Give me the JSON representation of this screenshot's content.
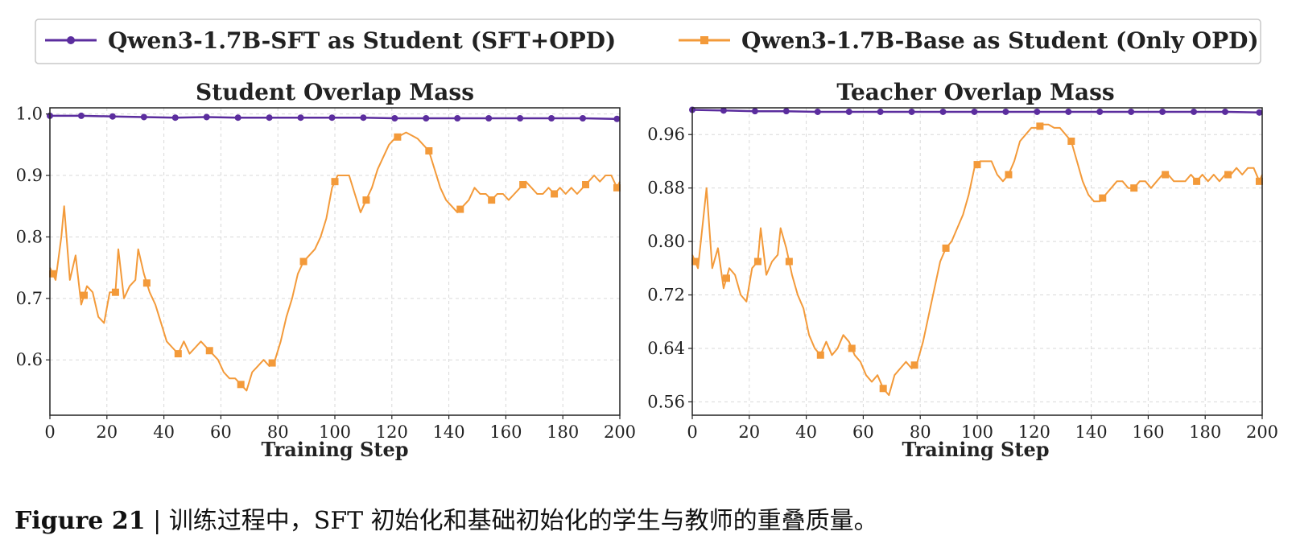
{
  "chart_data": [
    {
      "type": "line",
      "title": "Student Overlap Mass",
      "xlabel": "Training Step",
      "ylabel": "",
      "xlim": [
        0,
        200
      ],
      "ylim": [
        0.51,
        1.01
      ],
      "xticks": [
        0,
        20,
        40,
        60,
        80,
        100,
        120,
        140,
        160,
        180,
        200
      ],
      "xtick_labels": [
        "0",
        "20",
        "40",
        "60",
        "80",
        "100",
        "120",
        "140",
        "160",
        "180",
        "200"
      ],
      "yticks": [
        0.6,
        0.7,
        0.8,
        0.9,
        1.0
      ],
      "ytick_labels": [
        "0.6",
        "0.7",
        "0.8",
        "0.9",
        "1.0"
      ],
      "grid": true,
      "series": [
        {
          "name": "Qwen3-1.7B-SFT as Student (SFT+OPD)",
          "color": "#5b2d9e",
          "marker": "circle",
          "x": [
            0,
            11,
            22,
            33,
            44,
            55,
            66,
            77,
            88,
            99,
            110,
            121,
            132,
            143,
            154,
            165,
            176,
            187,
            199
          ],
          "y": [
            0.997,
            0.997,
            0.996,
            0.995,
            0.994,
            0.995,
            0.994,
            0.994,
            0.994,
            0.994,
            0.994,
            0.993,
            0.993,
            0.993,
            0.993,
            0.993,
            0.993,
            0.993,
            0.992
          ]
        },
        {
          "name": "Qwen3-1.7B-Base as Student (Only OPD)",
          "color": "#f39a3a",
          "marker": "square",
          "x": [
            0,
            2,
            4,
            5,
            7,
            9,
            11,
            13,
            15,
            17,
            19,
            21,
            23,
            24,
            26,
            28,
            30,
            31,
            33,
            35,
            37,
            39,
            41,
            43,
            45,
            47,
            49,
            51,
            53,
            55,
            57,
            59,
            61,
            63,
            65,
            67,
            69,
            71,
            73,
            75,
            77,
            79,
            81,
            83,
            85,
            87,
            89,
            91,
            93,
            95,
            97,
            99,
            101,
            103,
            105,
            107,
            109,
            111,
            113,
            115,
            117,
            119,
            121,
            123,
            125,
            127,
            129,
            131,
            133,
            135,
            137,
            139,
            141,
            143,
            145,
            147,
            149,
            151,
            153,
            155,
            157,
            159,
            161,
            163,
            165,
            167,
            169,
            171,
            173,
            175,
            177,
            179,
            181,
            183,
            185,
            187,
            189,
            191,
            193,
            195,
            197,
            199,
            200
          ],
          "y": [
            0.75,
            0.73,
            0.8,
            0.85,
            0.73,
            0.77,
            0.69,
            0.72,
            0.71,
            0.67,
            0.66,
            0.71,
            0.71,
            0.78,
            0.7,
            0.72,
            0.73,
            0.78,
            0.74,
            0.71,
            0.69,
            0.66,
            0.63,
            0.62,
            0.61,
            0.63,
            0.61,
            0.62,
            0.63,
            0.62,
            0.61,
            0.6,
            0.58,
            0.57,
            0.57,
            0.56,
            0.55,
            0.58,
            0.59,
            0.6,
            0.59,
            0.6,
            0.63,
            0.67,
            0.7,
            0.74,
            0.76,
            0.77,
            0.78,
            0.8,
            0.83,
            0.88,
            0.9,
            0.9,
            0.9,
            0.87,
            0.84,
            0.86,
            0.88,
            0.91,
            0.93,
            0.95,
            0.96,
            0.965,
            0.97,
            0.965,
            0.96,
            0.95,
            0.94,
            0.91,
            0.88,
            0.86,
            0.85,
            0.84,
            0.85,
            0.86,
            0.88,
            0.87,
            0.87,
            0.86,
            0.87,
            0.87,
            0.86,
            0.87,
            0.88,
            0.89,
            0.88,
            0.87,
            0.87,
            0.88,
            0.87,
            0.88,
            0.87,
            0.88,
            0.87,
            0.88,
            0.89,
            0.9,
            0.89,
            0.9,
            0.9,
            0.88,
            0.89
          ]
        }
      ]
    },
    {
      "type": "line",
      "title": "Teacher Overlap Mass",
      "xlabel": "Training Step",
      "ylabel": "",
      "xlim": [
        0,
        200
      ],
      "ylim": [
        0.54,
        1.0
      ],
      "xticks": [
        0,
        20,
        40,
        60,
        80,
        100,
        120,
        140,
        160,
        180,
        200
      ],
      "xtick_labels": [
        "0",
        "20",
        "40",
        "60",
        "80",
        "100",
        "120",
        "140",
        "160",
        "180",
        "200"
      ],
      "yticks": [
        0.56,
        0.64,
        0.72,
        0.8,
        0.88,
        0.96
      ],
      "ytick_labels": [
        "0.56",
        "0.64",
        "0.72",
        "0.80",
        "0.88",
        "0.96"
      ],
      "grid": true,
      "series": [
        {
          "name": "Qwen3-1.7B-SFT as Student (SFT+OPD)",
          "color": "#5b2d9e",
          "marker": "circle",
          "x": [
            0,
            11,
            22,
            33,
            44,
            55,
            66,
            77,
            88,
            99,
            110,
            121,
            132,
            143,
            154,
            165,
            176,
            187,
            199
          ],
          "y": [
            0.997,
            0.996,
            0.995,
            0.995,
            0.994,
            0.994,
            0.994,
            0.994,
            0.994,
            0.994,
            0.994,
            0.994,
            0.994,
            0.994,
            0.994,
            0.994,
            0.994,
            0.994,
            0.993
          ]
        },
        {
          "name": "Qwen3-1.7B-Base as Student (Only OPD)",
          "color": "#f39a3a",
          "marker": "square",
          "x": [
            0,
            2,
            4,
            5,
            7,
            9,
            11,
            13,
            15,
            17,
            19,
            21,
            23,
            24,
            26,
            28,
            30,
            31,
            33,
            35,
            37,
            39,
            41,
            43,
            45,
            47,
            49,
            51,
            53,
            55,
            57,
            59,
            61,
            63,
            65,
            67,
            69,
            71,
            73,
            75,
            77,
            79,
            81,
            83,
            85,
            87,
            89,
            91,
            93,
            95,
            97,
            99,
            101,
            103,
            105,
            107,
            109,
            111,
            113,
            115,
            117,
            119,
            121,
            123,
            125,
            127,
            129,
            131,
            133,
            135,
            137,
            139,
            141,
            143,
            145,
            147,
            149,
            151,
            153,
            155,
            157,
            159,
            161,
            163,
            165,
            167,
            169,
            171,
            173,
            175,
            177,
            179,
            181,
            183,
            185,
            187,
            189,
            191,
            193,
            195,
            197,
            199,
            200
          ],
          "y": [
            0.78,
            0.76,
            0.84,
            0.88,
            0.76,
            0.79,
            0.73,
            0.76,
            0.75,
            0.72,
            0.71,
            0.76,
            0.77,
            0.82,
            0.75,
            0.77,
            0.78,
            0.82,
            0.79,
            0.75,
            0.72,
            0.7,
            0.66,
            0.64,
            0.63,
            0.65,
            0.63,
            0.64,
            0.66,
            0.65,
            0.63,
            0.62,
            0.6,
            0.59,
            0.6,
            0.58,
            0.57,
            0.6,
            0.61,
            0.62,
            0.61,
            0.62,
            0.65,
            0.69,
            0.73,
            0.77,
            0.79,
            0.8,
            0.82,
            0.84,
            0.87,
            0.91,
            0.92,
            0.92,
            0.92,
            0.9,
            0.89,
            0.9,
            0.92,
            0.95,
            0.96,
            0.97,
            0.97,
            0.975,
            0.975,
            0.97,
            0.97,
            0.96,
            0.95,
            0.92,
            0.89,
            0.87,
            0.86,
            0.86,
            0.87,
            0.88,
            0.89,
            0.89,
            0.88,
            0.88,
            0.89,
            0.89,
            0.88,
            0.89,
            0.9,
            0.9,
            0.89,
            0.89,
            0.89,
            0.9,
            0.89,
            0.9,
            0.89,
            0.9,
            0.89,
            0.9,
            0.9,
            0.91,
            0.9,
            0.91,
            0.91,
            0.89,
            0.9
          ]
        }
      ]
    }
  ],
  "legend": {
    "entries": [
      "Qwen3-1.7B-SFT as Student (SFT+OPD)",
      "Qwen3-1.7B-Base as Student (Only OPD)"
    ],
    "placement": "top-center"
  },
  "caption": {
    "label": "Figure 21",
    "separator": " | ",
    "text": "训练过程中，SFT 初始化和基础初始化的学生与教师的重叠质量。"
  }
}
